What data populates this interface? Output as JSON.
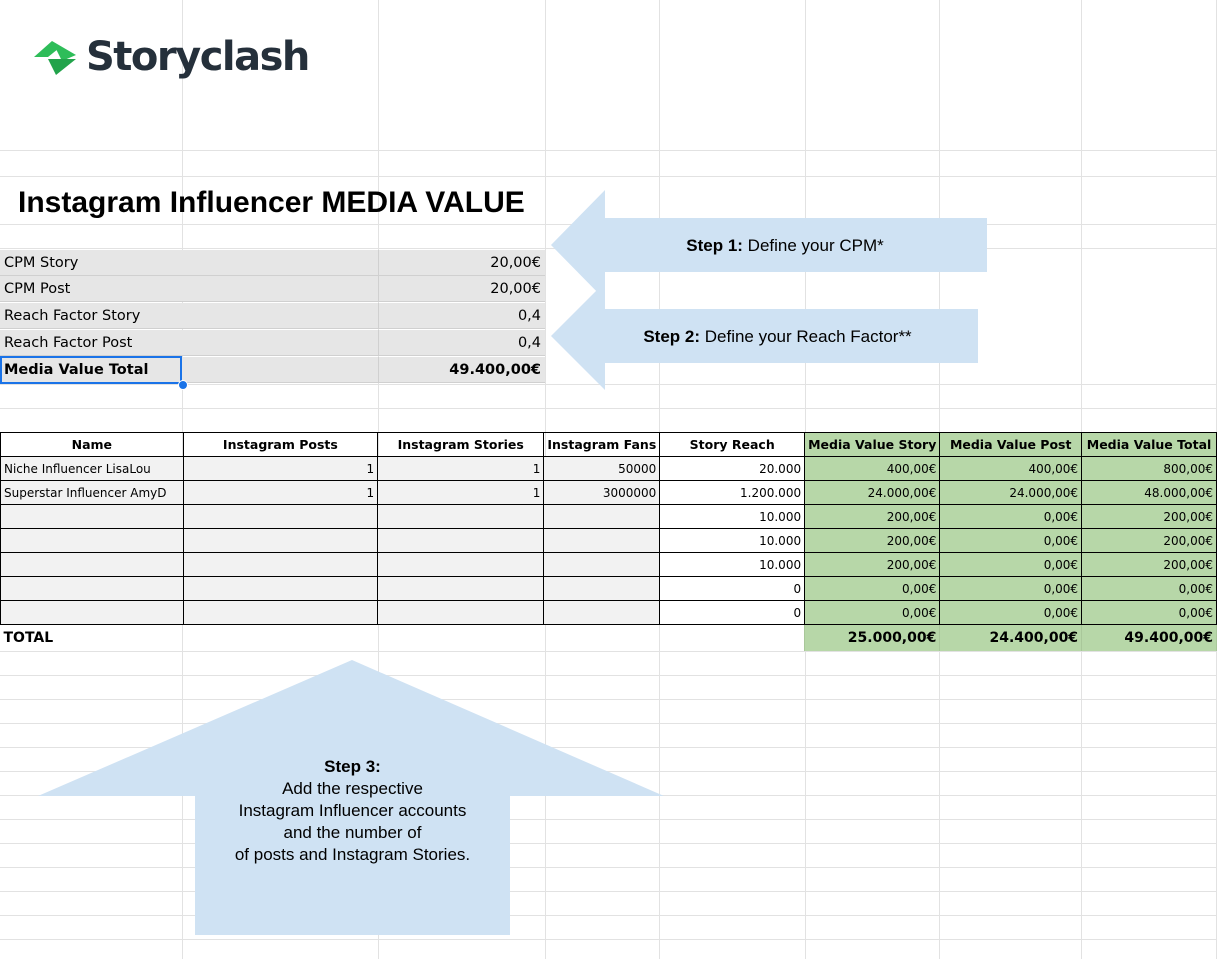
{
  "logo": {
    "text": "Storyclash"
  },
  "title": "Instagram Influencer MEDIA VALUE",
  "settings": [
    {
      "label": "CPM Story",
      "value": "20,00€"
    },
    {
      "label": "CPM Post",
      "value": "20,00€"
    },
    {
      "label": "Reach Factor Story",
      "value": "0,4"
    },
    {
      "label": "Reach Factor Post",
      "value": "0,4"
    },
    {
      "label": "Media Value Total",
      "value": "49.400,00€"
    }
  ],
  "steps": {
    "step1": {
      "bold": "Step 1:",
      "text": " Define your CPM*"
    },
    "step2": {
      "bold": "Step 2:",
      "text": " Define your Reach Factor**"
    },
    "step3": {
      "bold": "Step 3:",
      "lines": [
        "Add the respective",
        "Instagram Influencer accounts",
        "and the number of",
        "of posts and Instagram Stories."
      ]
    }
  },
  "table": {
    "headers": [
      "Name",
      "Instagram Posts",
      "Instagram Stories",
      "Instagram Fans",
      "Story Reach",
      "Media Value Story",
      "Media Value Post",
      "Media Value Total"
    ],
    "rows": [
      [
        "Niche Influencer LisaLou",
        "1",
        "1",
        "50000",
        "20.000",
        "400,00€",
        "400,00€",
        "800,00€"
      ],
      [
        "Superstar Influencer AmyD",
        "1",
        "1",
        "3000000",
        "1.200.000",
        "24.000,00€",
        "24.000,00€",
        "48.000,00€"
      ],
      [
        "",
        "",
        "",
        "",
        "10.000",
        "200,00€",
        "0,00€",
        "200,00€"
      ],
      [
        "",
        "",
        "",
        "",
        "10.000",
        "200,00€",
        "0,00€",
        "200,00€"
      ],
      [
        "",
        "",
        "",
        "",
        "10.000",
        "200,00€",
        "0,00€",
        "200,00€"
      ],
      [
        "",
        "",
        "",
        "",
        "0",
        "0,00€",
        "0,00€",
        "0,00€"
      ],
      [
        "",
        "",
        "",
        "",
        "0",
        "0,00€",
        "0,00€",
        "0,00€"
      ]
    ],
    "total": {
      "label": "TOTAL",
      "story": "25.000,00€",
      "post": "24.400,00€",
      "sum": "49.400,00€"
    }
  },
  "colors": {
    "green": "#b7d7a8",
    "arrow": "#cfe2f3",
    "logo_green": "#2ebd59",
    "logo_text": "#25303b",
    "selection": "#1a73e8"
  }
}
